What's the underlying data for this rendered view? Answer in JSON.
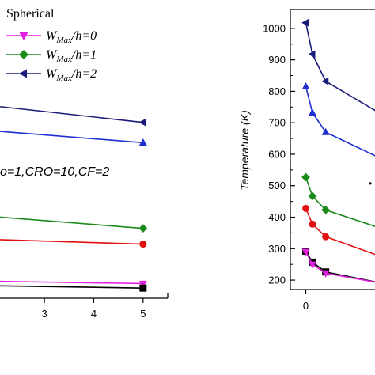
{
  "chart_data": [
    {
      "type": "line",
      "legend": {
        "title": "Spherical",
        "entries": [
          {
            "main": "W",
            "sub": "Max",
            "rest": "/h=0"
          },
          {
            "main": "W",
            "sub": "Max",
            "rest": "/h=1"
          },
          {
            "main": "W",
            "sub": "Max",
            "rest": "/h=2"
          }
        ],
        "placement": "top-left"
      },
      "annotation": "o=1,CRO=10,CF=2",
      "xticks": [
        "3",
        "4",
        "5"
      ],
      "xlim": [
        2.1,
        5.5
      ],
      "series": [
        {
          "key": "h2",
          "color": "#1a1a7a",
          "marker": "triangle-left",
          "x": [
            2.1,
            5
          ],
          "y": [
            0.85,
            0.78
          ]
        },
        {
          "key": "h2b",
          "color": "#1f2fd0",
          "marker": "triangle-up",
          "x": [
            2.1,
            5
          ],
          "y": [
            0.74,
            0.69
          ]
        },
        {
          "key": "h1",
          "color": "#1a8a1a",
          "marker": "diamond",
          "x": [
            2.1,
            5
          ],
          "y": [
            0.36,
            0.31
          ]
        },
        {
          "key": "h1b",
          "color": "#e01010",
          "marker": "circle",
          "x": [
            2.1,
            5
          ],
          "y": [
            0.26,
            0.24
          ]
        },
        {
          "key": "h0",
          "color": "#e020e0",
          "marker": "triangle-down",
          "x": [
            2.1,
            5
          ],
          "y": [
            0.075,
            0.065
          ]
        },
        {
          "key": "hk",
          "color": "#000000",
          "marker": "square",
          "x": [
            2.1,
            5
          ],
          "y": [
            0.055,
            0.045
          ]
        }
      ]
    },
    {
      "type": "line",
      "ylabel": "Temperature (K)",
      "yticks": [
        200,
        300,
        400,
        500,
        600,
        700,
        800,
        900,
        1000
      ],
      "ylim": [
        170,
        1060
      ],
      "xticks": [
        "0"
      ],
      "xlim": [
        -0.35,
        1.8
      ],
      "series": [
        {
          "key": "navy",
          "color": "#1a1a7a",
          "marker": "triangle-left",
          "x": [
            0,
            0.15,
            0.45,
            1.8
          ],
          "y": [
            1018,
            918,
            832,
            720
          ]
        },
        {
          "key": "blue",
          "color": "#1f2fd0",
          "marker": "triangle-up",
          "x": [
            0,
            0.15,
            0.45,
            1.8
          ],
          "y": [
            815,
            732,
            670,
            580
          ]
        },
        {
          "key": "green",
          "color": "#1a8a1a",
          "marker": "diamond",
          "x": [
            0,
            0.15,
            0.45,
            1.8
          ],
          "y": [
            527,
            467,
            423,
            360
          ]
        },
        {
          "key": "red",
          "color": "#e01010",
          "marker": "circle",
          "x": [
            0,
            0.15,
            0.45,
            1.8
          ],
          "y": [
            428,
            378,
            338,
            270
          ]
        },
        {
          "key": "black",
          "color": "#000000",
          "marker": "square",
          "x": [
            0,
            0.15,
            0.45,
            1.8
          ],
          "y": [
            292,
            257,
            226,
            188
          ]
        },
        {
          "key": "magenta",
          "color": "#e020e0",
          "marker": "triangle-down",
          "x": [
            0,
            0.15,
            0.45,
            1.8
          ],
          "y": [
            290,
            250,
            222,
            188
          ]
        }
      ]
    }
  ]
}
